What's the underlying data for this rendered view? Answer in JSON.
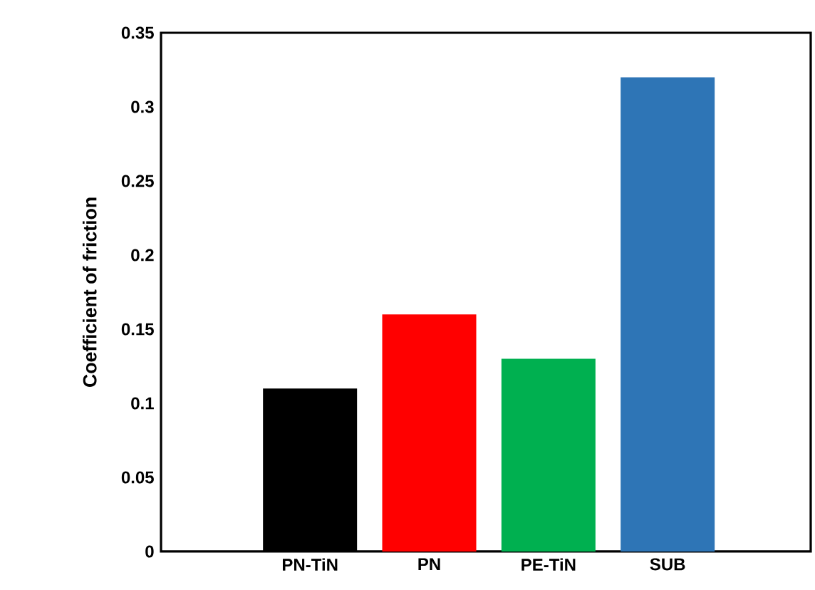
{
  "chart_data": {
    "type": "bar",
    "ylabel": "Coefficient of friction",
    "categories": [
      "PN-TiN",
      "PN",
      "PE-TiN",
      "SUB"
    ],
    "values": [
      0.11,
      0.16,
      0.13,
      0.32
    ],
    "colors": [
      "#000000",
      "#ff0000",
      "#00b050",
      "#2e75b6"
    ],
    "ylim": [
      0,
      0.35
    ],
    "yticks": [
      0,
      0.05,
      0.1,
      0.15,
      0.2,
      0.25,
      0.3,
      0.35
    ]
  }
}
